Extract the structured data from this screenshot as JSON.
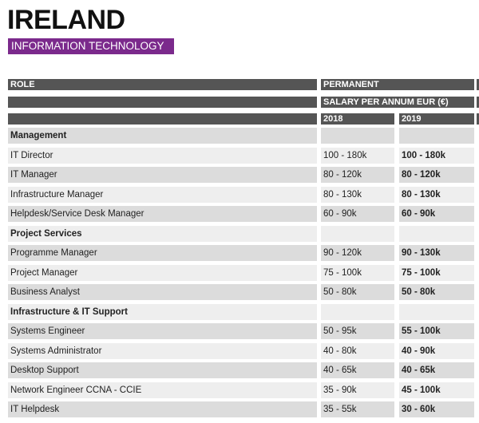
{
  "header": {
    "title": "IRELAND",
    "subtitle": "INFORMATION TECHNOLOGY"
  },
  "table": {
    "head": {
      "role": "ROLE",
      "group": "PERMANENT",
      "unit": "SALARY PER ANNUM EUR (€)",
      "years": [
        "2018",
        "2019"
      ]
    },
    "rows": [
      [
        "Management"
      ],
      [
        "IT Director",
        "100 - 180k",
        "100 - 180k"
      ],
      [
        "IT Manager",
        "80 - 120k",
        "80 - 120k"
      ],
      [
        "Infrastructure Manager",
        "80 - 130k",
        "80 - 130k"
      ],
      [
        "Helpdesk/Service Desk Manager",
        "60 - 90k",
        "60 - 90k"
      ],
      [
        "Project Services"
      ],
      [
        "Programme Manager",
        "90 - 120k",
        "90 - 130k"
      ],
      [
        "Project Manager",
        "75 - 100k",
        "75 - 100k"
      ],
      [
        "Business Analyst",
        "50 - 80k",
        "50 - 80k"
      ],
      [
        "Infrastructure & IT Support"
      ],
      [
        "Systems Engineer",
        "50 - 95k",
        "55 - 100k"
      ],
      [
        "Systems Administrator",
        "40 - 80k",
        "40 - 90k"
      ],
      [
        "Desktop Support",
        "40 - 65k",
        "40 - 65k"
      ],
      [
        "Network Engineer CCNA - CCIE",
        "35 - 90k",
        "45 - 100k"
      ],
      [
        "IT Helpdesk",
        "35 - 55k",
        "30 - 60k"
      ]
    ]
  }
}
